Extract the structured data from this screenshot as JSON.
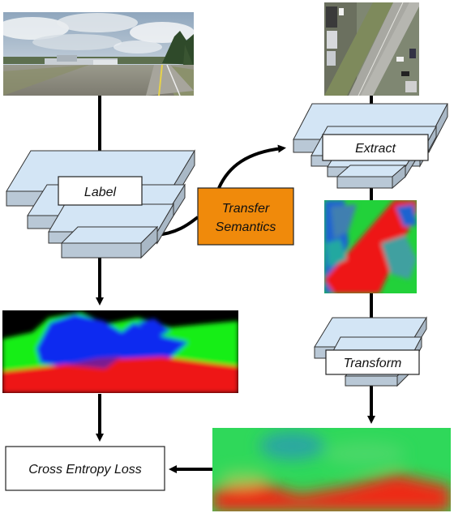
{
  "nodes": {
    "label": "Label",
    "extract": "Extract",
    "transform": "Transform",
    "transfer_line1": "Transfer",
    "transfer_line2": "Semantics",
    "loss": "Cross Entropy Loss"
  },
  "images": {
    "ground": "street-level-photo",
    "aerial": "aerial-overhead-photo",
    "ground_segmentation": "ground-semantic-label-map",
    "aerial_features": "aerial-feature-map",
    "transformed_features": "transformed-ground-prediction"
  },
  "colors": {
    "layer_fill": "#d3e5f5",
    "layer_side": "#b9c8d6",
    "transfer_box": "#f08a0b",
    "seg_black": "#000000",
    "seg_blue": "#0a2bf0",
    "seg_green": "#12ee12",
    "seg_red": "#ee1414"
  }
}
